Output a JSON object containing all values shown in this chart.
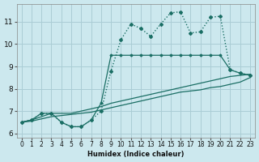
{
  "xlabel": "Humidex (Indice chaleur)",
  "bg_color": "#cce8ee",
  "grid_color": "#aacdd5",
  "line_color": "#1a6e64",
  "xlim": [
    -0.5,
    23.5
  ],
  "ylim": [
    5.8,
    11.8
  ],
  "yticks": [
    6,
    7,
    8,
    9,
    10,
    11
  ],
  "xticks": [
    0,
    1,
    2,
    3,
    4,
    5,
    6,
    7,
    8,
    9,
    10,
    11,
    12,
    13,
    14,
    15,
    16,
    17,
    18,
    19,
    20,
    21,
    22,
    23
  ],
  "series0_x": [
    0,
    1,
    2,
    3,
    4,
    5,
    6,
    7,
    8,
    9,
    10,
    11,
    12,
    13,
    14,
    15,
    16,
    17,
    18,
    19,
    20,
    21,
    22,
    23
  ],
  "series0_y": [
    6.5,
    6.6,
    6.9,
    6.9,
    6.5,
    6.3,
    6.3,
    6.6,
    7.0,
    8.8,
    10.2,
    10.9,
    10.7,
    10.35,
    10.9,
    11.4,
    11.45,
    10.5,
    10.55,
    11.2,
    11.25,
    8.85,
    8.7,
    8.6
  ],
  "series1_x": [
    0,
    1,
    2,
    3,
    4,
    5,
    6,
    7,
    8,
    9,
    10,
    11,
    12,
    13,
    14,
    15,
    16,
    17,
    18,
    19,
    20,
    21,
    22,
    23
  ],
  "series1_y": [
    6.5,
    6.6,
    6.9,
    6.9,
    6.5,
    6.3,
    6.3,
    6.6,
    7.35,
    9.5,
    9.5,
    9.5,
    9.5,
    9.5,
    9.5,
    9.5,
    9.5,
    9.5,
    9.5,
    9.5,
    9.5,
    8.85,
    8.7,
    8.6
  ],
  "series2_x": [
    0,
    1,
    2,
    3,
    4,
    5,
    6,
    7,
    8,
    9,
    10,
    11,
    12,
    13,
    14,
    15,
    16,
    17,
    18,
    19,
    20,
    21,
    22,
    23
  ],
  "series2_y": [
    6.5,
    6.6,
    6.75,
    6.9,
    6.9,
    6.9,
    7.0,
    7.1,
    7.2,
    7.35,
    7.45,
    7.55,
    7.65,
    7.75,
    7.85,
    7.95,
    8.05,
    8.15,
    8.25,
    8.35,
    8.45,
    8.55,
    8.6,
    8.65
  ],
  "series3_x": [
    0,
    1,
    2,
    3,
    4,
    5,
    6,
    7,
    8,
    9,
    10,
    11,
    12,
    13,
    14,
    15,
    16,
    17,
    18,
    19,
    20,
    21,
    22,
    23
  ],
  "series3_y": [
    6.5,
    6.55,
    6.65,
    6.75,
    6.8,
    6.85,
    6.9,
    6.95,
    7.05,
    7.15,
    7.25,
    7.35,
    7.45,
    7.55,
    7.65,
    7.75,
    7.85,
    7.9,
    7.95,
    8.05,
    8.1,
    8.2,
    8.3,
    8.5
  ]
}
